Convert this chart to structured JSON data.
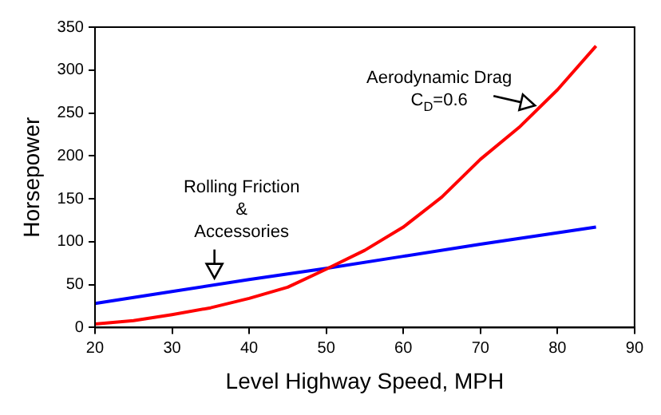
{
  "chart_data": {
    "type": "line",
    "xlabel": "Level Highway Speed, MPH",
    "ylabel": "Horsepower",
    "xlim": [
      20,
      90
    ],
    "xticks": [
      20,
      30,
      40,
      50,
      60,
      70,
      80,
      90
    ],
    "ylim": [
      0,
      350
    ],
    "yticks": [
      0,
      50,
      100,
      150,
      200,
      250,
      300,
      350
    ],
    "grid": false,
    "legend": false,
    "marker": "none",
    "line_style": "solid",
    "series": [
      {
        "color": "#ff0000",
        "x": [
          20,
          25,
          30,
          35,
          40,
          45,
          50,
          55,
          60,
          65,
          70,
          75,
          80,
          85
        ],
        "values": [
          4,
          8,
          15,
          23,
          34,
          47,
          68,
          90,
          117,
          152,
          196,
          233,
          277,
          328
        ]
      },
      {
        "color": "#0000ff",
        "x": [
          20,
          30,
          40,
          50,
          60,
          70,
          85
        ],
        "values": [
          28,
          42,
          56,
          69,
          83,
          97,
          117
        ]
      }
    ],
    "annotations": [
      {
        "text": "Aerodynamic Drag\nC$_{D}$=0.6",
        "x": 77.5,
        "y": 255
      },
      {
        "text": "Rolling Friction\n&\nAccessories",
        "x": 35.5,
        "y": 50
      }
    ]
  }
}
